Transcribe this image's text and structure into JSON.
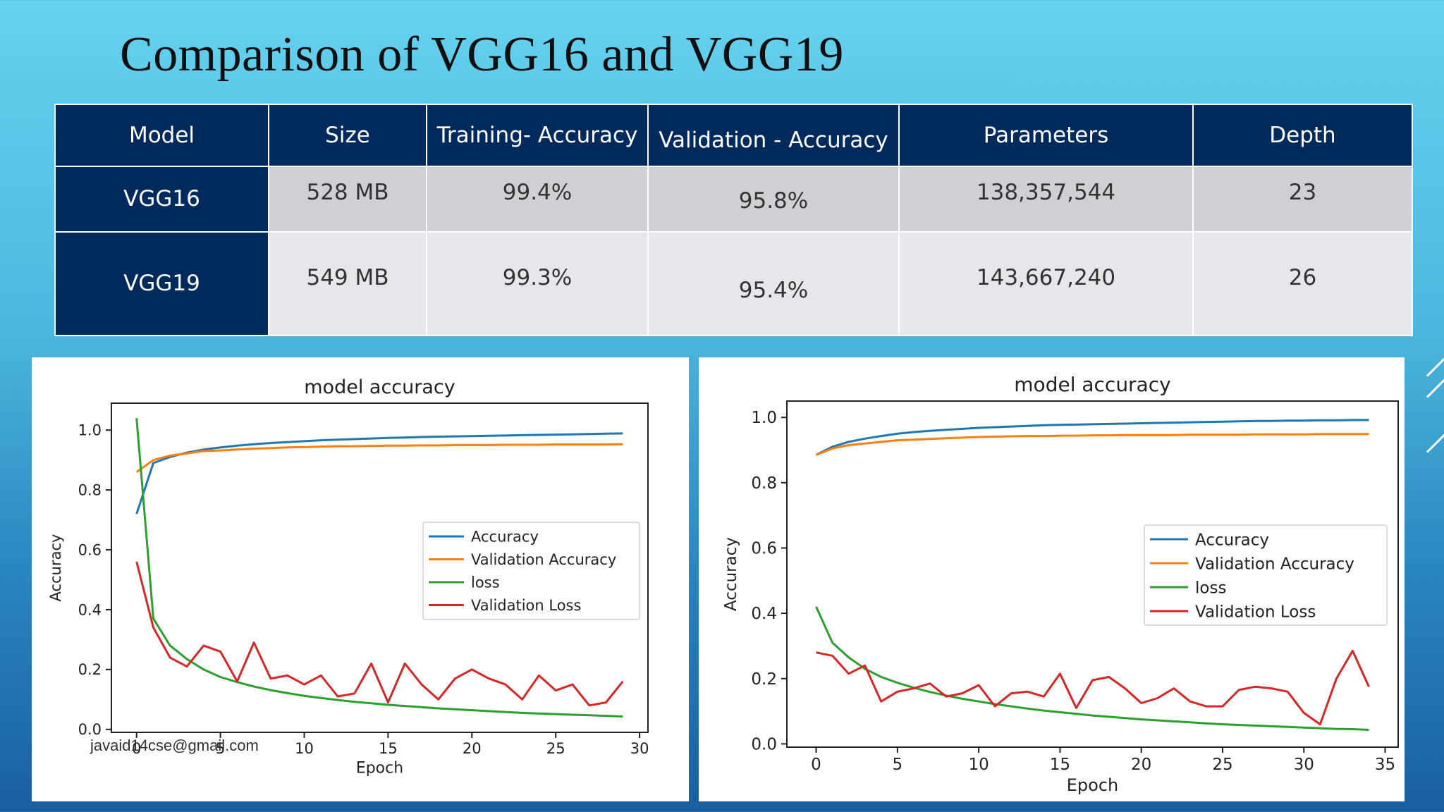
{
  "slide": {
    "title": "Comparison of VGG16 and VGG19",
    "footer_email": "javaid14cse@gmail.com"
  },
  "table": {
    "headers": [
      "Model",
      "Size",
      "Training- Accuracy",
      "Validation - Accuracy",
      "Parameters",
      "Depth"
    ],
    "rows": [
      {
        "model": "VGG16",
        "size": "528 MB",
        "training_accuracy": "99.4%",
        "validation_accuracy": "95.8%",
        "parameters": "138,357,544",
        "depth": "23"
      },
      {
        "model": "VGG19",
        "size": "549 MB",
        "training_accuracy": "99.3%",
        "validation_accuracy": "95.4%",
        "parameters": "143,667,240",
        "depth": "26"
      }
    ]
  },
  "colors": {
    "header_bg": "#002a5c",
    "accuracy": "#1f77b4",
    "validation_accuracy": "#ff7f0e",
    "loss": "#2ca02c",
    "validation_loss": "#d62728"
  },
  "chart_data": [
    {
      "type": "line",
      "title": "model accuracy",
      "xlabel": "Epoch",
      "ylabel": "Accuracy",
      "xlim": [
        -1.5,
        30.5
      ],
      "ylim": [
        -0.01,
        1.09
      ],
      "xticks": [
        0,
        5,
        10,
        15,
        20,
        25,
        30
      ],
      "yticks": [
        0.0,
        0.2,
        0.4,
        0.6,
        0.8,
        1.0
      ],
      "legend_position": "center-right",
      "x": [
        0,
        1,
        2,
        3,
        4,
        5,
        6,
        7,
        8,
        9,
        10,
        11,
        12,
        13,
        14,
        15,
        16,
        17,
        18,
        19,
        20,
        21,
        22,
        23,
        24,
        25,
        26,
        27,
        28,
        29
      ],
      "series": [
        {
          "name": "Accuracy",
          "color": "#1f77b4",
          "values": [
            0.72,
            0.89,
            0.91,
            0.925,
            0.935,
            0.942,
            0.948,
            0.953,
            0.957,
            0.96,
            0.963,
            0.966,
            0.968,
            0.97,
            0.972,
            0.974,
            0.975,
            0.977,
            0.978,
            0.979,
            0.98,
            0.981,
            0.982,
            0.983,
            0.984,
            0.985,
            0.986,
            0.987,
            0.988,
            0.989
          ]
        },
        {
          "name": "Validation Accuracy",
          "color": "#ff7f0e",
          "values": [
            0.86,
            0.9,
            0.915,
            0.922,
            0.93,
            0.932,
            0.935,
            0.938,
            0.94,
            0.942,
            0.943,
            0.945,
            0.946,
            0.946,
            0.947,
            0.948,
            0.948,
            0.949,
            0.949,
            0.95,
            0.95,
            0.95,
            0.951,
            0.951,
            0.951,
            0.952,
            0.952,
            0.952,
            0.952,
            0.953
          ]
        },
        {
          "name": "loss",
          "color": "#2ca02c",
          "values": [
            1.04,
            0.37,
            0.28,
            0.235,
            0.2,
            0.175,
            0.158,
            0.143,
            0.131,
            0.121,
            0.112,
            0.105,
            0.098,
            0.092,
            0.087,
            0.082,
            0.078,
            0.074,
            0.07,
            0.067,
            0.064,
            0.061,
            0.058,
            0.055,
            0.053,
            0.051,
            0.049,
            0.047,
            0.045,
            0.043
          ]
        },
        {
          "name": "Validation Loss",
          "color": "#d62728",
          "values": [
            0.56,
            0.34,
            0.24,
            0.21,
            0.28,
            0.26,
            0.16,
            0.29,
            0.17,
            0.18,
            0.15,
            0.18,
            0.11,
            0.12,
            0.22,
            0.09,
            0.22,
            0.15,
            0.1,
            0.17,
            0.2,
            0.17,
            0.15,
            0.1,
            0.18,
            0.13,
            0.15,
            0.08,
            0.09,
            0.16
          ]
        }
      ]
    },
    {
      "type": "line",
      "title": "model accuracy",
      "xlabel": "Epoch",
      "ylabel": "Accuracy",
      "xlim": [
        -1.8,
        35.8
      ],
      "ylim": [
        -0.01,
        1.05
      ],
      "xticks": [
        0,
        5,
        10,
        15,
        20,
        25,
        30,
        35
      ],
      "yticks": [
        0.0,
        0.2,
        0.4,
        0.6,
        0.8,
        1.0
      ],
      "legend_position": "center-right",
      "x": [
        0,
        1,
        2,
        3,
        4,
        5,
        6,
        7,
        8,
        9,
        10,
        11,
        12,
        13,
        14,
        15,
        16,
        17,
        18,
        19,
        20,
        21,
        22,
        23,
        24,
        25,
        26,
        27,
        28,
        29,
        30,
        31,
        32,
        33,
        34
      ],
      "series": [
        {
          "name": "Accuracy",
          "color": "#1f77b4",
          "values": [
            0.885,
            0.91,
            0.925,
            0.935,
            0.943,
            0.95,
            0.955,
            0.959,
            0.962,
            0.965,
            0.968,
            0.97,
            0.972,
            0.974,
            0.976,
            0.977,
            0.978,
            0.979,
            0.98,
            0.981,
            0.982,
            0.983,
            0.984,
            0.985,
            0.986,
            0.987,
            0.988,
            0.989,
            0.989,
            0.99,
            0.99,
            0.991,
            0.991,
            0.992,
            0.992
          ]
        },
        {
          "name": "Validation Accuracy",
          "color": "#ff7f0e",
          "values": [
            0.885,
            0.905,
            0.915,
            0.92,
            0.925,
            0.93,
            0.932,
            0.934,
            0.936,
            0.938,
            0.94,
            0.941,
            0.942,
            0.943,
            0.943,
            0.944,
            0.944,
            0.945,
            0.945,
            0.946,
            0.946,
            0.946,
            0.946,
            0.947,
            0.947,
            0.947,
            0.947,
            0.948,
            0.948,
            0.948,
            0.948,
            0.949,
            0.949,
            0.949,
            0.949
          ]
        },
        {
          "name": "loss",
          "color": "#2ca02c",
          "values": [
            0.42,
            0.31,
            0.265,
            0.23,
            0.205,
            0.187,
            0.172,
            0.159,
            0.148,
            0.138,
            0.13,
            0.122,
            0.115,
            0.108,
            0.102,
            0.097,
            0.092,
            0.087,
            0.083,
            0.079,
            0.075,
            0.072,
            0.069,
            0.066,
            0.063,
            0.06,
            0.058,
            0.056,
            0.054,
            0.052,
            0.05,
            0.048,
            0.046,
            0.045,
            0.043
          ]
        },
        {
          "name": "Validation Loss",
          "color": "#d62728",
          "values": [
            0.28,
            0.27,
            0.215,
            0.24,
            0.13,
            0.16,
            0.17,
            0.185,
            0.145,
            0.155,
            0.18,
            0.115,
            0.155,
            0.16,
            0.145,
            0.215,
            0.11,
            0.195,
            0.205,
            0.17,
            0.125,
            0.14,
            0.17,
            0.13,
            0.115,
            0.115,
            0.165,
            0.175,
            0.17,
            0.16,
            0.095,
            0.06,
            0.2,
            0.285,
            0.175
          ]
        }
      ]
    }
  ]
}
